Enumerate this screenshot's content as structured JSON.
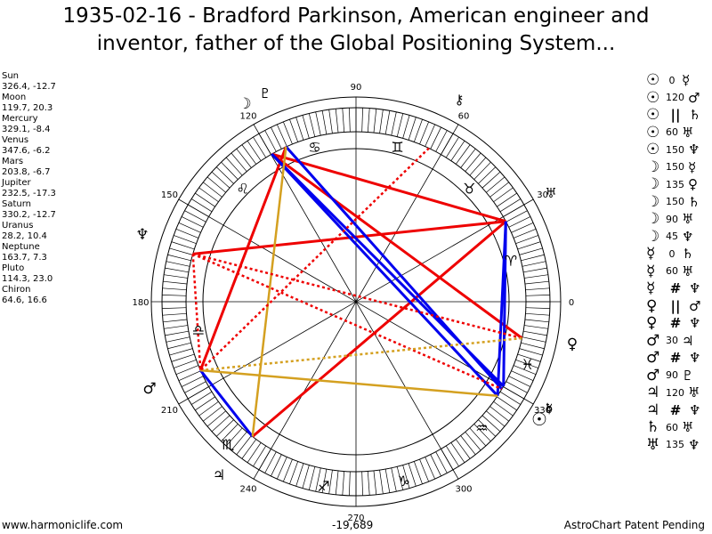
{
  "title": {
    "line1": "1935-02-16 - Bradford Parkinson, American engineer and",
    "line2": "inventor, father of the Global Positioning System..."
  },
  "planets": [
    {
      "name": "Sun",
      "glyph": "☉",
      "coords": "326.4, -12.7"
    },
    {
      "name": "Moon",
      "glyph": "☽",
      "coords": "119.7, 20.3"
    },
    {
      "name": "Mercury",
      "glyph": "☿",
      "coords": "329.1, -8.4"
    },
    {
      "name": "Venus",
      "glyph": "♀",
      "coords": "347.6, -6.2"
    },
    {
      "name": "Mars",
      "glyph": "♂",
      "coords": "203.8, -6.7"
    },
    {
      "name": "Jupiter",
      "glyph": "♃",
      "coords": "232.5, -17.3"
    },
    {
      "name": "Saturn",
      "glyph": "♄",
      "coords": "330.2, -12.7"
    },
    {
      "name": "Uranus",
      "glyph": "♅",
      "coords": "28.2, 10.4"
    },
    {
      "name": "Neptune",
      "glyph": "♆",
      "coords": "163.7, 7.3"
    },
    {
      "name": "Pluto",
      "glyph": "♇",
      "coords": "114.3, 23.0"
    },
    {
      "name": "Chiron",
      "glyph": "⚷",
      "coords": "64.6, 16.6"
    }
  ],
  "aspects": [
    {
      "p1": "☉",
      "sep": "0",
      "p2": "☿"
    },
    {
      "p1": "☉",
      "sep": "120",
      "p2": "♂"
    },
    {
      "p1": "☉",
      "sym": "||",
      "p2": "♄"
    },
    {
      "p1": "☉",
      "sep": "60",
      "p2": "♅"
    },
    {
      "p1": "☉",
      "sep": "150",
      "p2": "♆"
    },
    {
      "p1": "☽",
      "sep": "150",
      "p2": "☿"
    },
    {
      "p1": "☽",
      "sep": "135",
      "p2": "♀"
    },
    {
      "p1": "☽",
      "sep": "150",
      "p2": "♄"
    },
    {
      "p1": "☽",
      "sep": "90",
      "p2": "♅"
    },
    {
      "p1": "☽",
      "sep": "45",
      "p2": "♆"
    },
    {
      "p1": "☿",
      "sep": "0",
      "p2": "♄"
    },
    {
      "p1": "☿",
      "sep": "60",
      "p2": "♅"
    },
    {
      "p1": "☿",
      "sym": "#",
      "p2": "♆"
    },
    {
      "p1": "♀",
      "sym": "||",
      "p2": "♂"
    },
    {
      "p1": "♀",
      "sym": "#",
      "p2": "♆"
    },
    {
      "p1": "♂",
      "sep": "30",
      "p2": "♃"
    },
    {
      "p1": "♂",
      "sym": "#",
      "p2": "♆"
    },
    {
      "p1": "♂",
      "sep": "90",
      "p2": "♇"
    },
    {
      "p1": "♃",
      "sep": "120",
      "p2": "♅"
    },
    {
      "p1": "♃",
      "sym": "#",
      "p2": "♆"
    },
    {
      "p1": "♄",
      "sep": "60",
      "p2": "♅"
    },
    {
      "p1": "♅",
      "sep": "135",
      "p2": "♆"
    }
  ],
  "wheel": {
    "degree_labels": [
      "0",
      "30",
      "60",
      "90",
      "120",
      "150",
      "180",
      "210",
      "240",
      "270",
      "300",
      "330"
    ],
    "bottom_value": "-19,689",
    "colors": {
      "red": "#ee0000",
      "blue": "#0000ee",
      "gold": "#d4a020"
    }
  },
  "footer": {
    "left": "www.harmoniclife.com",
    "center": "-19,689",
    "right": "AstroChart Patent Pending"
  }
}
